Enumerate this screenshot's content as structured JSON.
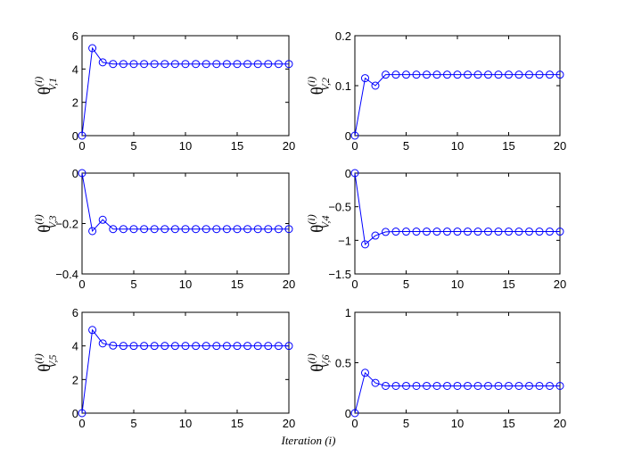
{
  "figure": {
    "xlabel": "Iteration (i)",
    "line_color": "#0000ff",
    "axis_color": "#000000"
  },
  "chart_data": [
    {
      "type": "line",
      "ylabel": {
        "symbol": "θ",
        "sup": "(i)",
        "sub": "V,1"
      },
      "xlim": [
        0,
        20
      ],
      "ylim": [
        0,
        6
      ],
      "xticks": [
        0,
        5,
        10,
        15,
        20
      ],
      "yticks": [
        0,
        2,
        4,
        6
      ],
      "ytick_labels": [
        "0",
        "2",
        "4",
        "6"
      ],
      "grid": false,
      "x": [
        0,
        1,
        2,
        3,
        4,
        5,
        6,
        7,
        8,
        9,
        10,
        11,
        12,
        13,
        14,
        15,
        16,
        17,
        18,
        19,
        20
      ],
      "series": [
        {
          "values": [
            0,
            5.25,
            4.4,
            4.3,
            4.3,
            4.3,
            4.3,
            4.3,
            4.3,
            4.3,
            4.3,
            4.3,
            4.3,
            4.3,
            4.3,
            4.3,
            4.3,
            4.3,
            4.3,
            4.3,
            4.3
          ]
        }
      ]
    },
    {
      "type": "line",
      "ylabel": {
        "symbol": "θ",
        "sup": "(i)",
        "sub": "V,2"
      },
      "xlim": [
        0,
        20
      ],
      "ylim": [
        0,
        0.2
      ],
      "xticks": [
        0,
        5,
        10,
        15,
        20
      ],
      "yticks": [
        0,
        0.1,
        0.2
      ],
      "ytick_labels": [
        "0",
        "0.1",
        "0.2"
      ],
      "grid": false,
      "x": [
        0,
        1,
        2,
        3,
        4,
        5,
        6,
        7,
        8,
        9,
        10,
        11,
        12,
        13,
        14,
        15,
        16,
        17,
        18,
        19,
        20
      ],
      "series": [
        {
          "values": [
            0,
            0.115,
            0.1,
            0.122,
            0.122,
            0.122,
            0.122,
            0.122,
            0.122,
            0.122,
            0.122,
            0.122,
            0.122,
            0.122,
            0.122,
            0.122,
            0.122,
            0.122,
            0.122,
            0.122,
            0.122
          ]
        }
      ]
    },
    {
      "type": "line",
      "ylabel": {
        "symbol": "θ",
        "sup": "(i)",
        "sub": "V,3"
      },
      "xlim": [
        0,
        20
      ],
      "ylim": [
        -0.4,
        0
      ],
      "xticks": [
        0,
        5,
        10,
        15,
        20
      ],
      "yticks": [
        -0.4,
        -0.2,
        0
      ],
      "ytick_labels": [
        "−0.4",
        "−0.2",
        "0"
      ],
      "grid": false,
      "x": [
        0,
        1,
        2,
        3,
        4,
        5,
        6,
        7,
        8,
        9,
        10,
        11,
        12,
        13,
        14,
        15,
        16,
        17,
        18,
        19,
        20
      ],
      "series": [
        {
          "values": [
            0,
            -0.23,
            -0.185,
            -0.222,
            -0.222,
            -0.222,
            -0.222,
            -0.222,
            -0.222,
            -0.222,
            -0.222,
            -0.222,
            -0.222,
            -0.222,
            -0.222,
            -0.222,
            -0.222,
            -0.222,
            -0.222,
            -0.222,
            -0.222
          ]
        }
      ]
    },
    {
      "type": "line",
      "ylabel": {
        "symbol": "θ",
        "sup": "(i)",
        "sub": "V,4"
      },
      "xlim": [
        0,
        20
      ],
      "ylim": [
        -1.5,
        0
      ],
      "xticks": [
        0,
        5,
        10,
        15,
        20
      ],
      "yticks": [
        -1.5,
        -1,
        -0.5,
        0
      ],
      "ytick_labels": [
        "−1.5",
        "−1",
        "−0.5",
        "0"
      ],
      "grid": false,
      "x": [
        0,
        1,
        2,
        3,
        4,
        5,
        6,
        7,
        8,
        9,
        10,
        11,
        12,
        13,
        14,
        15,
        16,
        17,
        18,
        19,
        20
      ],
      "series": [
        {
          "values": [
            0,
            -1.06,
            -0.93,
            -0.875,
            -0.87,
            -0.87,
            -0.87,
            -0.87,
            -0.87,
            -0.87,
            -0.87,
            -0.87,
            -0.87,
            -0.87,
            -0.87,
            -0.87,
            -0.87,
            -0.87,
            -0.87,
            -0.87,
            -0.87
          ]
        }
      ]
    },
    {
      "type": "line",
      "ylabel": {
        "symbol": "θ",
        "sup": "(i)",
        "sub": "V,5"
      },
      "xlim": [
        0,
        20
      ],
      "ylim": [
        0,
        6
      ],
      "xticks": [
        0,
        5,
        10,
        15,
        20
      ],
      "yticks": [
        0,
        2,
        4,
        6
      ],
      "ytick_labels": [
        "0",
        "2",
        "4",
        "6"
      ],
      "grid": false,
      "x": [
        0,
        1,
        2,
        3,
        4,
        5,
        6,
        7,
        8,
        9,
        10,
        11,
        12,
        13,
        14,
        15,
        16,
        17,
        18,
        19,
        20
      ],
      "series": [
        {
          "values": [
            0,
            4.95,
            4.15,
            4.02,
            4.0,
            4.0,
            4.0,
            4.0,
            4.0,
            4.0,
            4.0,
            4.0,
            4.0,
            4.0,
            4.0,
            4.0,
            4.0,
            4.0,
            4.0,
            4.0,
            4.0
          ]
        }
      ]
    },
    {
      "type": "line",
      "ylabel": {
        "symbol": "θ",
        "sup": "(i)",
        "sub": "V,6"
      },
      "xlim": [
        0,
        20
      ],
      "ylim": [
        0,
        1
      ],
      "xticks": [
        0,
        5,
        10,
        15,
        20
      ],
      "yticks": [
        0,
        0.5,
        1
      ],
      "ytick_labels": [
        "0",
        "0.5",
        "1"
      ],
      "grid": false,
      "x": [
        0,
        1,
        2,
        3,
        4,
        5,
        6,
        7,
        8,
        9,
        10,
        11,
        12,
        13,
        14,
        15,
        16,
        17,
        18,
        19,
        20
      ],
      "series": [
        {
          "values": [
            0,
            0.4,
            0.3,
            0.27,
            0.27,
            0.27,
            0.27,
            0.27,
            0.27,
            0.27,
            0.27,
            0.27,
            0.27,
            0.27,
            0.27,
            0.27,
            0.27,
            0.27,
            0.27,
            0.27,
            0.27
          ]
        }
      ]
    }
  ]
}
